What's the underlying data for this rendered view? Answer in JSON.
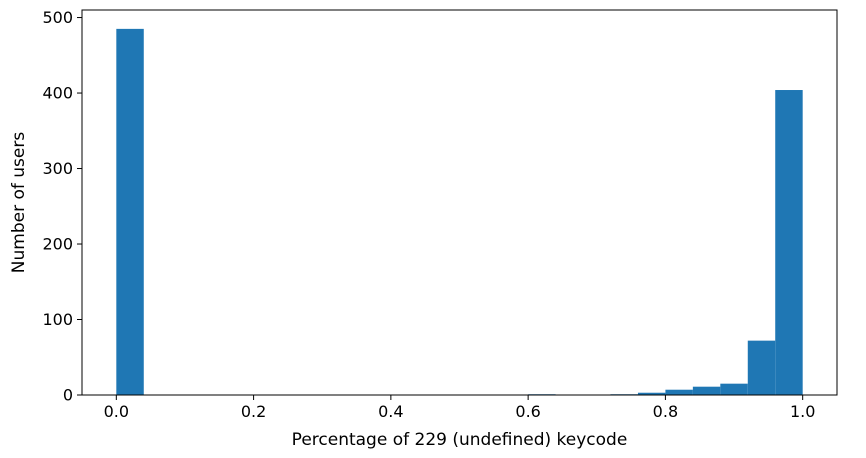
{
  "chart_data": {
    "type": "bar",
    "title": "",
    "xlabel": "Percentage of 229 (undefined) keycode",
    "ylabel": "Number of users",
    "xlim": [
      -0.05,
      1.05
    ],
    "ylim": [
      0,
      510
    ],
    "bin_width": 0.04,
    "bins": [
      {
        "start": 0.0,
        "value": 485
      },
      {
        "start": 0.6,
        "value": 1
      },
      {
        "start": 0.72,
        "value": 1
      },
      {
        "start": 0.76,
        "value": 3
      },
      {
        "start": 0.8,
        "value": 7
      },
      {
        "start": 0.84,
        "value": 11
      },
      {
        "start": 0.88,
        "value": 15
      },
      {
        "start": 0.92,
        "value": 72
      },
      {
        "start": 0.96,
        "value": 404
      }
    ],
    "x_ticks": [
      {
        "value": 0.0,
        "label": "0.0"
      },
      {
        "value": 0.2,
        "label": "0.2"
      },
      {
        "value": 0.4,
        "label": "0.4"
      },
      {
        "value": 0.6,
        "label": "0.6"
      },
      {
        "value": 0.8,
        "label": "0.8"
      },
      {
        "value": 1.0,
        "label": "1.0"
      }
    ],
    "y_ticks": [
      {
        "value": 0,
        "label": "0"
      },
      {
        "value": 100,
        "label": "100"
      },
      {
        "value": 200,
        "label": "200"
      },
      {
        "value": 300,
        "label": "300"
      },
      {
        "value": 400,
        "label": "400"
      },
      {
        "value": 500,
        "label": "500"
      }
    ],
    "bar_color": "#1f77b4",
    "grid": false,
    "legend": "none"
  }
}
